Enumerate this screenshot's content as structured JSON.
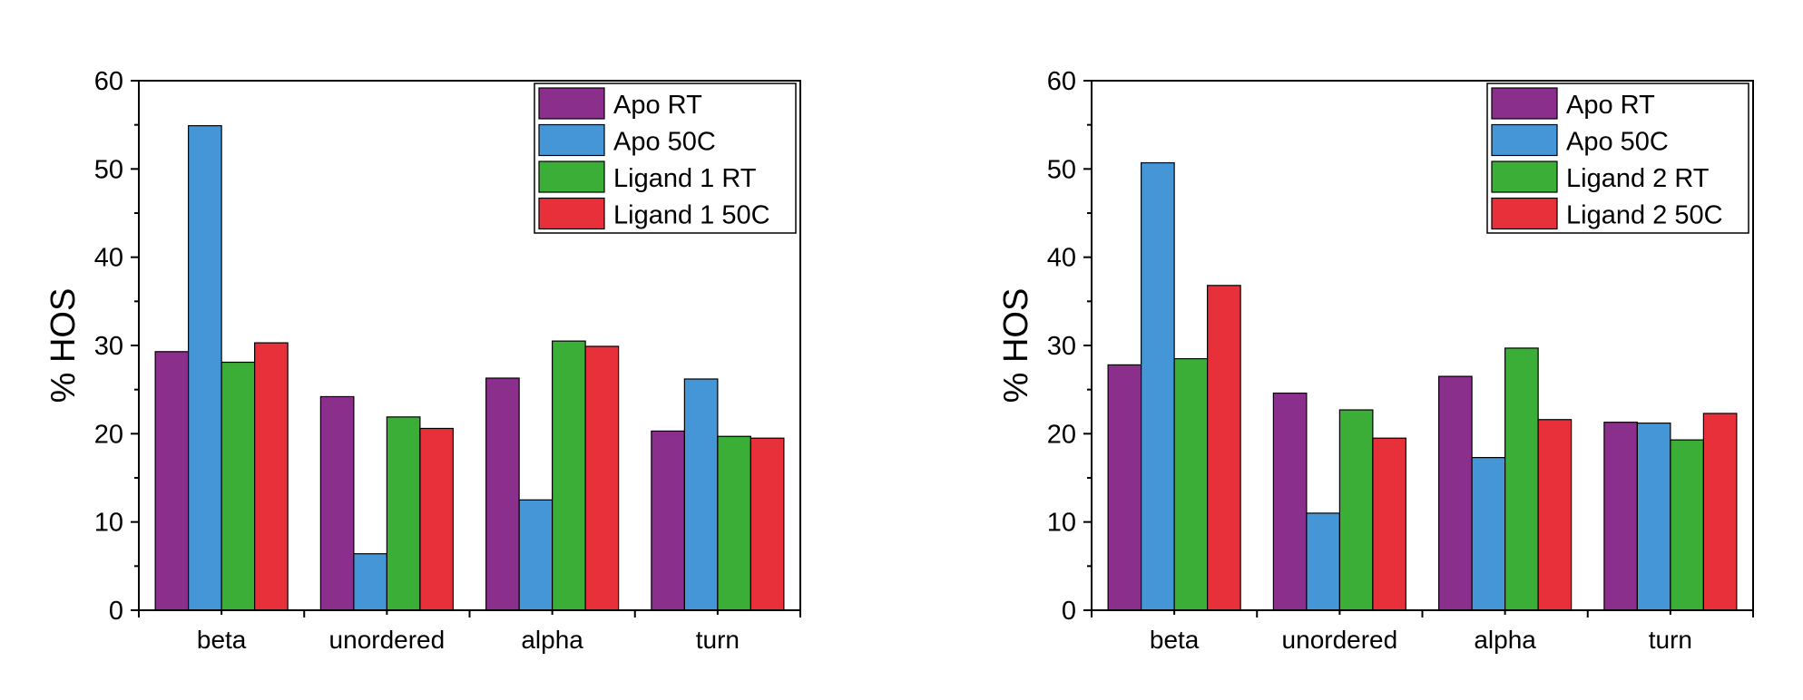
{
  "colors": {
    "apo_rt": "#8B2F8C",
    "apo_50c": "#4596D6",
    "ligand_rt": "#3BAE37",
    "ligand_50c": "#E8303A",
    "axis": "#000000"
  },
  "chart_data": [
    {
      "type": "bar",
      "ylabel": "% HOS",
      "xlabel": "",
      "ylim": [
        0,
        60
      ],
      "yticks": [
        0,
        10,
        20,
        30,
        40,
        50,
        60
      ],
      "categories": [
        "beta",
        "unordered",
        "alpha",
        "turn"
      ],
      "legend_position": "top-right",
      "series": [
        {
          "name": "Apo RT",
          "color": "#8B2F8C",
          "values": [
            29.3,
            24.2,
            26.3,
            20.3
          ]
        },
        {
          "name": "Apo 50C",
          "color": "#4596D6",
          "values": [
            54.9,
            6.4,
            12.5,
            26.2
          ]
        },
        {
          "name": "Ligand 1 RT",
          "color": "#3BAE37",
          "values": [
            28.1,
            21.9,
            30.5,
            19.7
          ]
        },
        {
          "name": "Ligand 1 50C",
          "color": "#E8303A",
          "values": [
            30.3,
            20.6,
            29.9,
            19.5
          ]
        }
      ]
    },
    {
      "type": "bar",
      "ylabel": "% HOS",
      "xlabel": "",
      "ylim": [
        0,
        60
      ],
      "yticks": [
        0,
        10,
        20,
        30,
        40,
        50,
        60
      ],
      "categories": [
        "beta",
        "unordered",
        "alpha",
        "turn"
      ],
      "legend_position": "top-right",
      "series": [
        {
          "name": "Apo RT",
          "color": "#8B2F8C",
          "values": [
            27.8,
            24.6,
            26.5,
            21.3
          ]
        },
        {
          "name": "Apo 50C",
          "color": "#4596D6",
          "values": [
            50.7,
            11.0,
            17.3,
            21.2
          ]
        },
        {
          "name": "Ligand 2 RT",
          "color": "#3BAE37",
          "values": [
            28.5,
            22.7,
            29.7,
            19.3
          ]
        },
        {
          "name": "Ligand 2 50C",
          "color": "#E8303A",
          "values": [
            36.8,
            19.5,
            21.6,
            22.3
          ]
        }
      ]
    }
  ]
}
